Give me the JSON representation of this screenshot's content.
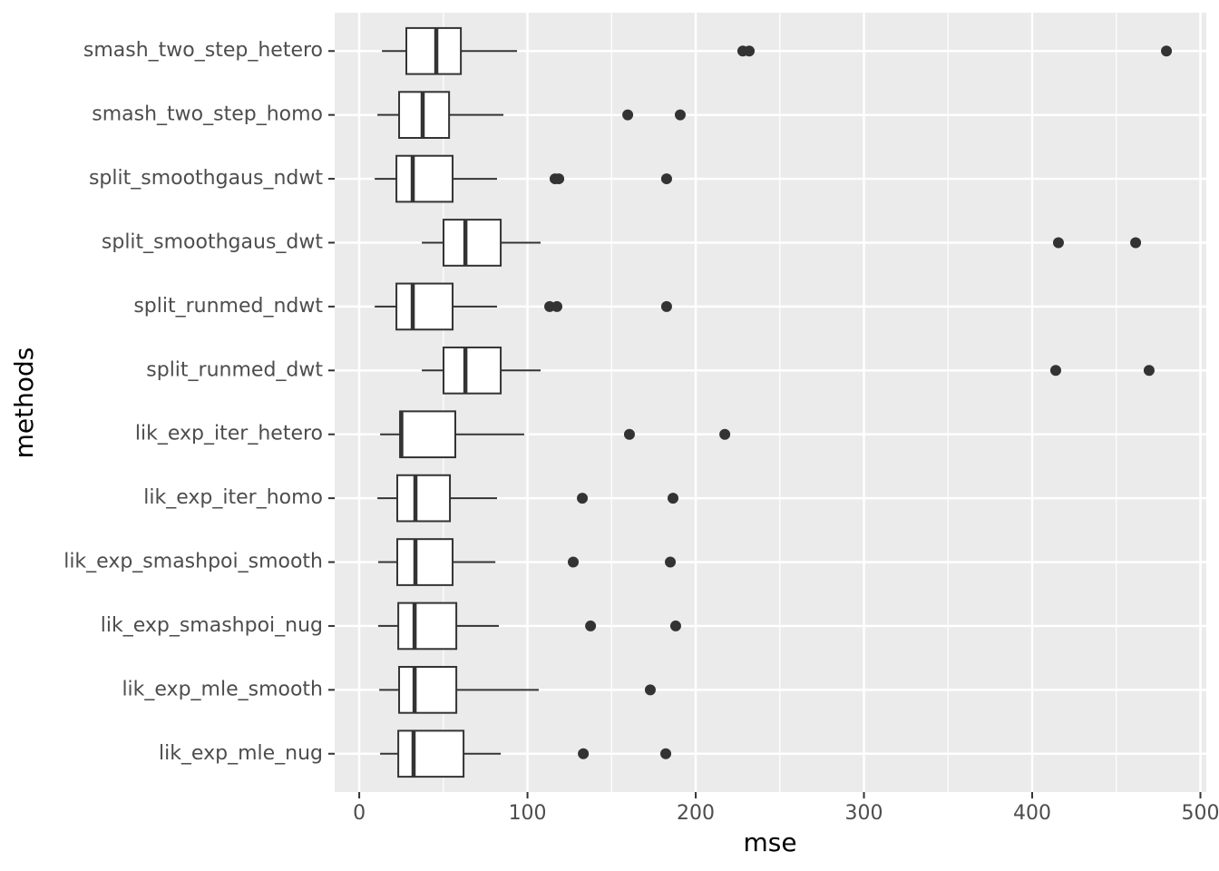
{
  "chart_data": {
    "type": "boxplot",
    "orientation": "horizontal",
    "x_label": "mse",
    "y_label": "methods",
    "categories": [
      "smash_two_step_hetero",
      "smash_two_step_homo",
      "split_smoothgaus_ndwt",
      "split_smoothgaus_dwt",
      "split_runmed_ndwt",
      "split_runmed_dwt",
      "lik_exp_iter_hetero",
      "lik_exp_iter_homo",
      "lik_exp_smashpoi_smooth",
      "lik_exp_smashpoi_nug",
      "lik_exp_mle_smooth",
      "lik_exp_mle_nug"
    ],
    "boxes": [
      {
        "whislo": 13.5,
        "q1": 28,
        "median": 45.8,
        "q3": 60.4,
        "whishi": 93.8,
        "outliers": [
          228,
          231.8,
          479.8
        ]
      },
      {
        "whislo": 10.8,
        "q1": 23.7,
        "median": 37.7,
        "q3": 53.4,
        "whishi": 85.7,
        "outliers": [
          159.6,
          190.8
        ]
      },
      {
        "whislo": 9.2,
        "q1": 22.1,
        "median": 31.8,
        "q3": 55.5,
        "whishi": 81.9,
        "outliers": [
          116.4,
          118.6,
          182.7
        ]
      },
      {
        "whislo": 37.2,
        "q1": 50.1,
        "median": 63.1,
        "q3": 84.1,
        "whishi": 107.8,
        "outliers": [
          415.6,
          461.5
        ]
      },
      {
        "whislo": 9.2,
        "q1": 22.1,
        "median": 31.8,
        "q3": 55.5,
        "whishi": 81.9,
        "outliers": [
          113.2,
          117.5,
          182.7
        ]
      },
      {
        "whislo": 37.2,
        "q1": 50.1,
        "median": 63.1,
        "q3": 84.1,
        "whishi": 107.8,
        "outliers": [
          414,
          469.5
        ]
      },
      {
        "whislo": 12.4,
        "q1": 24.3,
        "median": 25,
        "q3": 57.1,
        "whishi": 98.1,
        "outliers": [
          160.6,
          217.3
        ]
      },
      {
        "whislo": 10.8,
        "q1": 22.6,
        "median": 33.4,
        "q3": 53.9,
        "whishi": 81.9,
        "outliers": [
          132.6,
          186.5
        ]
      },
      {
        "whislo": 11.3,
        "q1": 22.6,
        "median": 33.4,
        "q3": 55.5,
        "whishi": 80.9,
        "outliers": [
          127.2,
          184.9
        ]
      },
      {
        "whislo": 11.3,
        "q1": 23.2,
        "median": 32.9,
        "q3": 57.7,
        "whishi": 83,
        "outliers": [
          137.5,
          188.1
        ]
      },
      {
        "whislo": 11.9,
        "q1": 23.7,
        "median": 32.9,
        "q3": 57.7,
        "whishi": 106.7,
        "outliers": [
          173
        ]
      },
      {
        "whislo": 12.4,
        "q1": 23.2,
        "median": 32.3,
        "q3": 62,
        "whishi": 84.1,
        "outliers": [
          133.2,
          182.2
        ]
      }
    ],
    "xlim": [
      -14.6,
      503.5
    ],
    "xticks": [
      0,
      100,
      200,
      300,
      400,
      500
    ],
    "xminor": [
      50,
      150,
      250,
      350,
      450
    ],
    "grid": true,
    "panel_color": "#ebebeb",
    "box_color": "#333333",
    "box_fill": "#ffffff"
  }
}
